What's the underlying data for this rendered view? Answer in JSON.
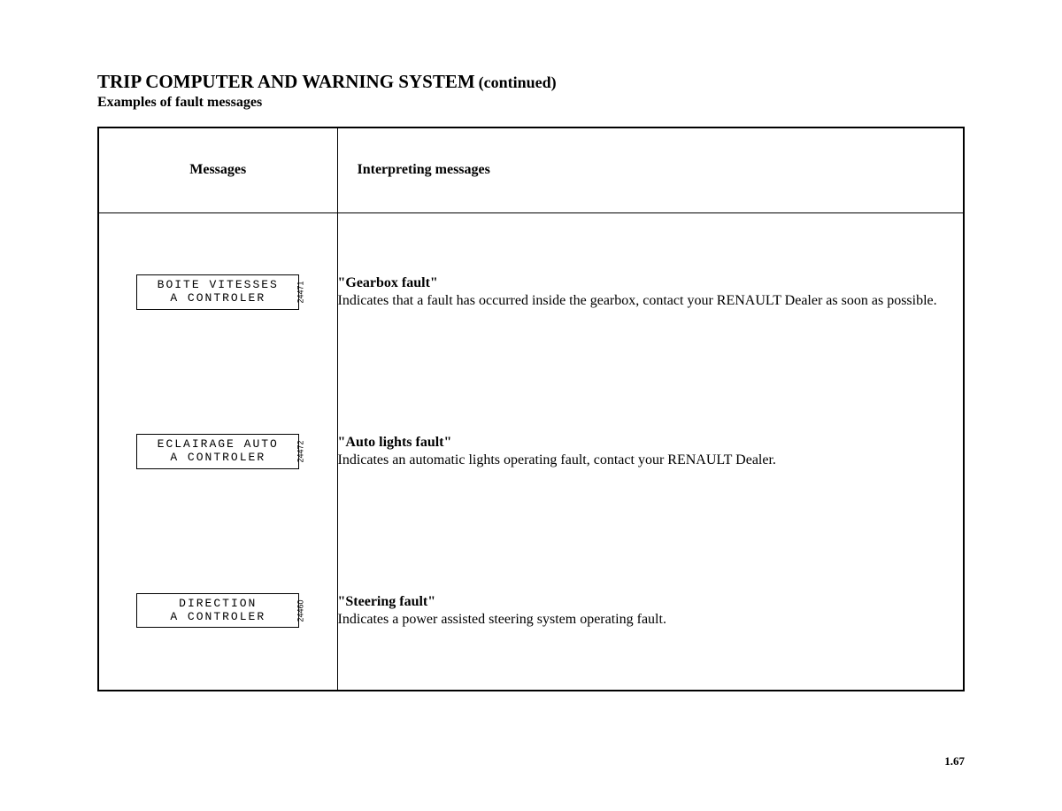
{
  "heading": {
    "main": "TRIP COMPUTER AND WARNING SYSTEM",
    "continued": "(continued)",
    "subtitle": "Examples of fault messages"
  },
  "table": {
    "headers": {
      "messages": "Messages",
      "interpreting": "Interpreting messages"
    },
    "rows": [
      {
        "lcd_line1": "BOITE VITESSES",
        "lcd_line2": "A CONTROLER",
        "fig": "24471",
        "title": "\"Gearbox fault\"",
        "desc": "Indicates that a fault has occurred inside the gearbox, contact your RENAULT Dealer as soon as possible."
      },
      {
        "lcd_line1": "ECLAIRAGE AUTO",
        "lcd_line2": "A CONTROLER",
        "fig": "24472",
        "title": "\"Auto lights fault\"",
        "desc": "Indicates an automatic lights operating fault, contact your RENAULT Dealer."
      },
      {
        "lcd_line1": "DIRECTION",
        "lcd_line2": "A CONTROLER",
        "fig": "24460",
        "title": "\"Steering fault\"",
        "desc": "Indicates a power assisted steering system operating fault."
      }
    ]
  },
  "page_number": "1.67"
}
